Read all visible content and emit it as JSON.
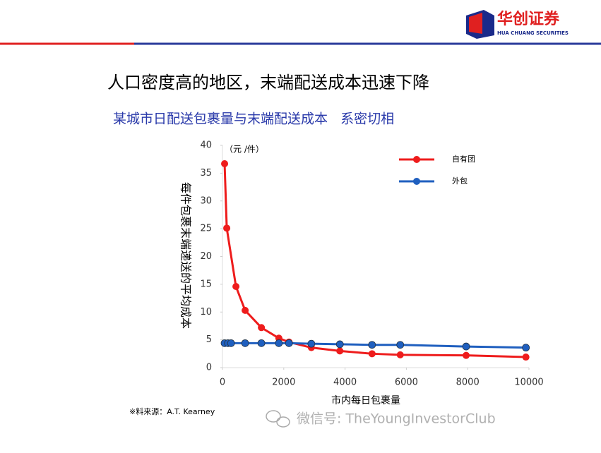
{
  "header": {
    "logo_cn": "华创证券",
    "logo_en": "HUA CHUANG SECURITIES"
  },
  "title": "人口密度高的地区，末端配送成本迅速下降",
  "subtitle": "某城市日配送包裹量与末端配送成本   系密切相",
  "chart_data": {
    "type": "line",
    "unit_label": "（元 /件）",
    "y_label": "每件包裹末端递送的平均成本",
    "x_label": "市内每日包裹量",
    "xlim": [
      0,
      10000
    ],
    "xticks": [
      0,
      2000,
      4000,
      6000,
      8000,
      10000
    ],
    "ylim": [
      0,
      40
    ],
    "yticks": [
      0,
      5,
      10,
      15,
      20,
      25,
      30,
      35,
      40
    ],
    "legend": "upper right",
    "series": [
      {
        "name": "自有团",
        "color": "#ee1c1c",
        "x": [
          70,
          140,
          440,
          740,
          1270,
          1840,
          2170,
          2900,
          3830,
          4880,
          5800,
          7950,
          9900
        ],
        "values": [
          36.7,
          25.1,
          14.6,
          10.3,
          7.2,
          5.3,
          4.6,
          3.6,
          3.0,
          2.5,
          2.3,
          2.2,
          1.9
        ]
      },
      {
        "name": "外包",
        "color": "#1f5fbf",
        "x": [
          70,
          180,
          280,
          740,
          1270,
          1840,
          2170,
          2900,
          3830,
          4880,
          5800,
          7950,
          9900
        ],
        "values": [
          4.4,
          4.4,
          4.4,
          4.4,
          4.4,
          4.4,
          4.4,
          4.3,
          4.2,
          4.1,
          4.1,
          3.8,
          3.6
        ]
      }
    ]
  },
  "source": "※料来源：A.T. Kearney",
  "watermark": "微信号: TheYoungInvestorClub"
}
